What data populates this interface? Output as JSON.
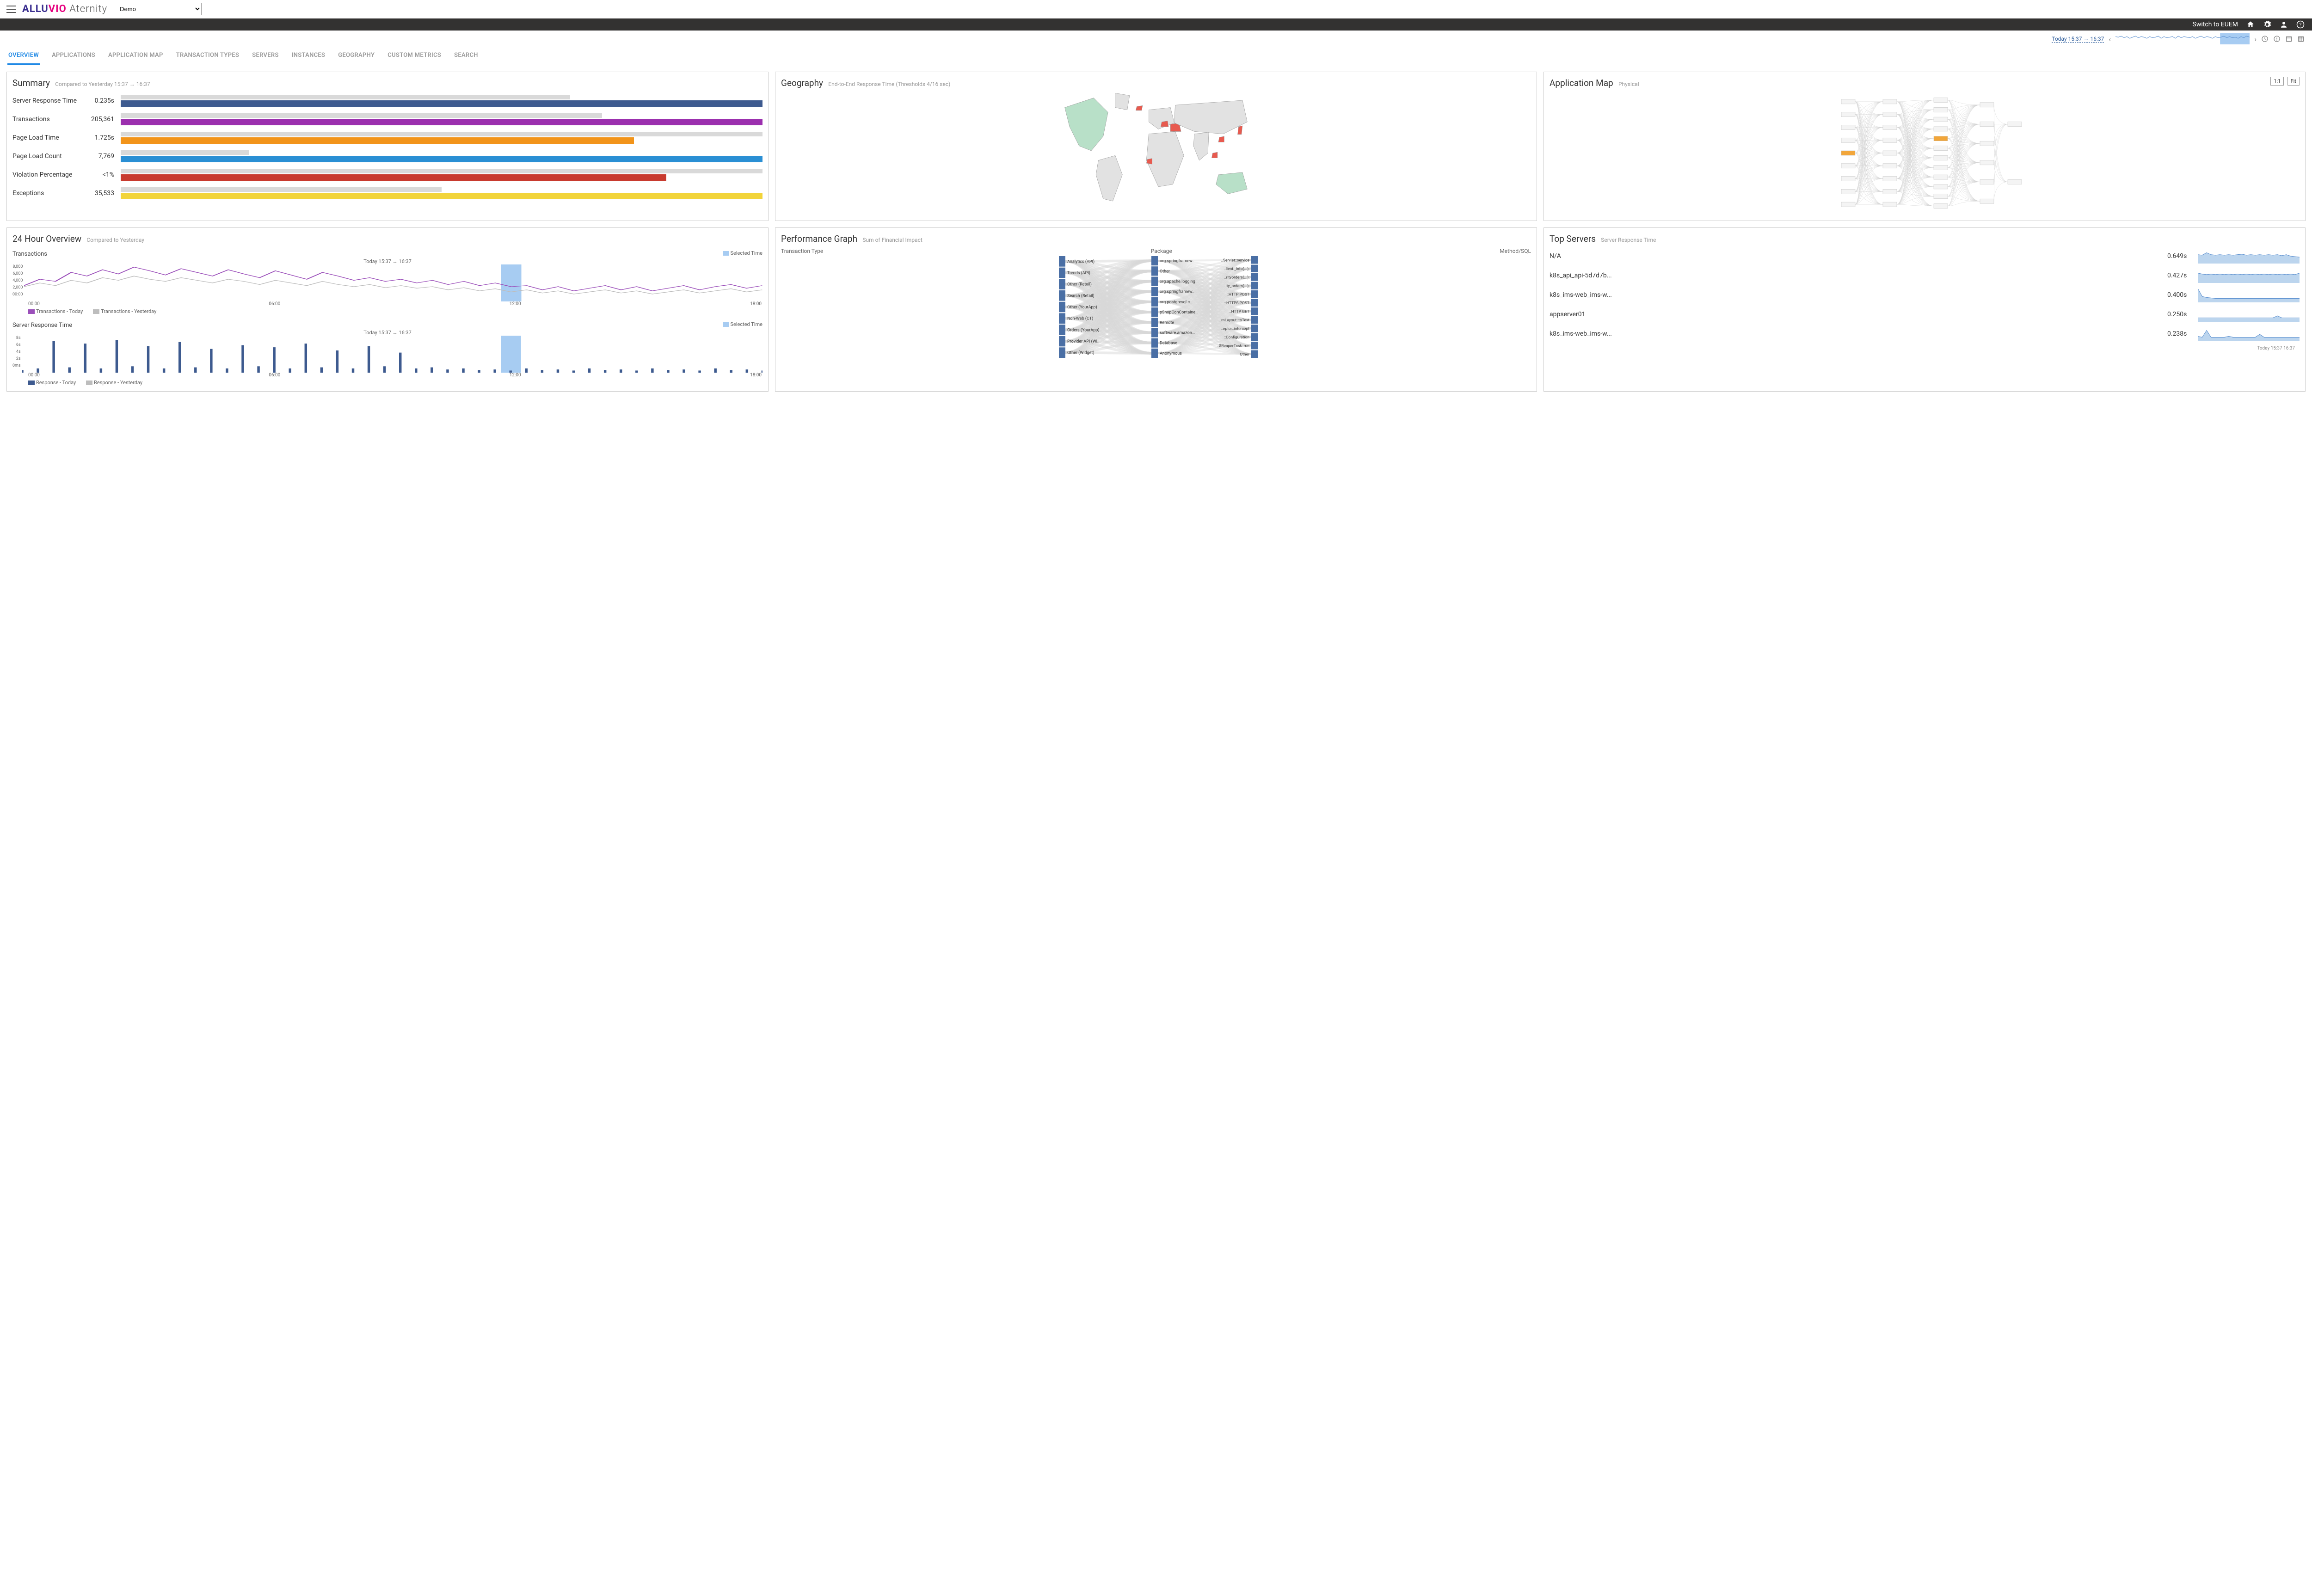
{
  "brand": {
    "part1": "ALLUVIO",
    "part2": "Aternity",
    "color1": "#3a2e8f",
    "color2": "#e6007e"
  },
  "tenant": "Demo",
  "switch_label": "Switch to EUEM",
  "time_range": "Today 15:37 → 16:37",
  "timebar_sparkline": {
    "color": "#5b8fcf",
    "highlight_color": "#a7ccf2",
    "points": [
      14,
      13,
      15,
      12,
      14,
      11,
      13,
      15,
      12,
      14,
      13,
      11,
      14,
      12,
      13,
      15,
      11,
      14,
      12,
      13,
      14,
      11,
      15,
      12,
      14,
      13,
      12,
      14,
      11,
      13,
      15,
      12,
      14,
      13,
      11,
      14,
      12,
      13,
      15,
      12,
      14,
      12,
      13,
      11,
      14,
      12,
      15,
      13
    ],
    "highlight_start": 0.78,
    "highlight_end": 1.0
  },
  "tabs": [
    "OVERVIEW",
    "APPLICATIONS",
    "APPLICATION MAP",
    "TRANSACTION TYPES",
    "SERVERS",
    "INSTANCES",
    "GEOGRAPHY",
    "CUSTOM METRICS",
    "SEARCH"
  ],
  "active_tab": 0,
  "summary": {
    "title": "Summary",
    "subtitle": "Compared to Yesterday 15:37 → 16:37",
    "rows": [
      {
        "label": "Server Response Time",
        "value": "0.235s",
        "bg_pct": 70,
        "fg_pct": 100,
        "color": "#3d5a8f"
      },
      {
        "label": "Transactions",
        "value": "205,361",
        "bg_pct": 75,
        "fg_pct": 100,
        "color": "#9b2fae"
      },
      {
        "label": "Page Load Time",
        "value": "1.725s",
        "bg_pct": 100,
        "fg_pct": 80,
        "color": "#f2941a"
      },
      {
        "label": "Page Load Count",
        "value": "7,769",
        "bg_pct": 20,
        "fg_pct": 100,
        "color": "#2a8fd4"
      },
      {
        "label": "Violation Percentage",
        "value": "<1%",
        "bg_pct": 100,
        "fg_pct": 85,
        "color": "#c83a2e"
      },
      {
        "label": "Exceptions",
        "value": "35,533",
        "bg_pct": 50,
        "fg_pct": 100,
        "color": "#f2d43a"
      }
    ]
  },
  "geography": {
    "title": "Geography",
    "subtitle": "End-to-End Response Time (Thresholds 4/16 sec)",
    "ok_color": "#b8e0c8",
    "bad_color": "#e85a4f",
    "neutral_color": "#e2e2e2",
    "stroke": "#999"
  },
  "appmap": {
    "title": "Application Map",
    "subtitle": "Physical",
    "btn1": "1:1",
    "btn2": "Fit",
    "node_fill": "#f4f4f4",
    "node_stroke": "#bbb",
    "edge": "#d5d5d5",
    "highlight": "#f2a63a"
  },
  "overview24": {
    "title": "24 Hour Overview",
    "subtitle": "Compared to Yesterday",
    "selected_label": "Selected Time",
    "selected_color": "#a7ccf2",
    "range_label": "Today 15:37 → 16:37",
    "chart1": {
      "title": "Transactions",
      "y_ticks": [
        "8,000",
        "6,000",
        "4,000",
        "2,000",
        "00:00"
      ],
      "x_ticks": [
        "00:00",
        "06:00",
        "12:00",
        "18:00"
      ],
      "legend_a": "Transactions - Today",
      "color_a": "#9b4fba",
      "legend_b": "Transactions - Yesterday",
      "color_b": "#bdbdbd",
      "series_a": [
        30,
        42,
        38,
        55,
        48,
        60,
        52,
        65,
        58,
        50,
        62,
        55,
        48,
        60,
        52,
        45,
        58,
        50,
        42,
        55,
        48,
        40,
        45,
        38,
        42,
        35,
        40,
        32,
        38,
        30,
        35,
        28,
        30,
        22,
        28,
        20,
        25,
        30,
        22,
        28,
        20,
        25,
        30,
        22,
        28,
        32,
        25,
        30
      ],
      "series_b": [
        28,
        35,
        30,
        40,
        35,
        45,
        40,
        48,
        42,
        38,
        45,
        40,
        35,
        42,
        38,
        32,
        40,
        35,
        30,
        38,
        32,
        28,
        32,
        26,
        30,
        25,
        28,
        22,
        26,
        20,
        24,
        18,
        22,
        16,
        20,
        14,
        18,
        22,
        16,
        20,
        14,
        18,
        22,
        16,
        20,
        24,
        18,
        22
      ],
      "highlight_x": 0.66
    },
    "chart2": {
      "title": "Server Response Time",
      "y_ticks": [
        "8s",
        "6s",
        "4s",
        "2s",
        "0ms"
      ],
      "x_ticks": [
        "00:00",
        "06:00",
        "12:00",
        "18:00"
      ],
      "legend_a": "Response - Today",
      "color_a": "#3d5a8f",
      "legend_b": "Response - Yesterday",
      "color_b": "#bdbdbd",
      "series": [
        5,
        8,
        60,
        10,
        55,
        8,
        62,
        12,
        50,
        8,
        58,
        10,
        45,
        8,
        52,
        12,
        48,
        8,
        55,
        10,
        42,
        8,
        50,
        12,
        38,
        8,
        10,
        6,
        8,
        5,
        6,
        4,
        8,
        5,
        6,
        4,
        8,
        5,
        6,
        4,
        8,
        5,
        6,
        4,
        8,
        5,
        6,
        4
      ],
      "highlight_x": 0.66
    }
  },
  "perfgraph": {
    "title": "Performance Graph",
    "subtitle": "Sum of Financial Impact",
    "col1": "Transaction Type",
    "col2": "Package",
    "col3": "Method/SQL",
    "node_color": "#4a6fa5",
    "flow_color": "#d8d8d8",
    "left": [
      "Analytics (API)",
      "Trends (API)",
      "Other (Retail)",
      "Search (Retail)",
      "Other (YourApp)",
      "Non-Web (CT)",
      "Orders (YourApp)",
      "Provider API (Wi..",
      "Other (Widget)"
    ],
    "mid": [
      "org.springframew..",
      "Other",
      "org.apache.logging",
      "org.springframew..",
      "org.postgresql.c..",
      "pShopConContaine..",
      "Remote",
      "software.amazon...",
      "Database",
      "Anonymous"
    ],
    "right": [
      "..Servlet::service",
      "..lient._info(...);",
      "..rityorders(...);",
      "..ity_orders(...);",
      "::HTTP POST",
      "::HTTPS POST",
      "::HTTP GET",
      "..rnLayout::toText",
      "..eptor::intercept",
      "::Configuration",
      "..$ReaperTask::run",
      "Other"
    ]
  },
  "topservers": {
    "title": "Top Servers",
    "subtitle": "Server Response Time",
    "spark_fill": "#bcd5ee",
    "spark_stroke": "#5b8fcf",
    "footer": "Today 15:37       16:37",
    "rows": [
      {
        "name": "N/A",
        "value": "0.649s",
        "series": [
          18,
          17,
          22,
          18,
          17,
          18,
          17,
          18,
          17,
          18,
          19,
          17,
          18,
          17,
          18,
          17,
          18,
          17,
          18,
          16,
          18,
          15,
          14,
          13
        ]
      },
      {
        "name": "k8s_api_api-5d7d7b...",
        "value": "0.427s",
        "series": [
          20,
          18,
          17,
          18,
          17,
          18,
          17,
          18,
          17,
          18,
          17,
          18,
          17,
          18,
          17,
          18,
          17,
          18,
          17,
          18,
          17,
          18,
          17,
          20
        ]
      },
      {
        "name": "k8s_ims-web_ims-w...",
        "value": "0.400s",
        "series": [
          28,
          12,
          10,
          9,
          8,
          8,
          8,
          8,
          8,
          8,
          8,
          8,
          8,
          8,
          8,
          8,
          8,
          8,
          8,
          8,
          8,
          8,
          8,
          8
        ]
      },
      {
        "name": "appserver01",
        "value": "0.250s",
        "series": [
          8,
          8,
          8,
          8,
          8,
          8,
          8,
          8,
          8,
          8,
          8,
          8,
          8,
          8,
          8,
          8,
          8,
          8,
          12,
          8,
          8,
          8,
          8,
          8
        ]
      },
      {
        "name": "k8s_ims-web_ims-w...",
        "value": "0.238s",
        "series": [
          10,
          8,
          22,
          8,
          8,
          8,
          8,
          10,
          8,
          8,
          8,
          8,
          8,
          8,
          14,
          8,
          8,
          8,
          8,
          8,
          8,
          8,
          8,
          8
        ]
      }
    ]
  }
}
